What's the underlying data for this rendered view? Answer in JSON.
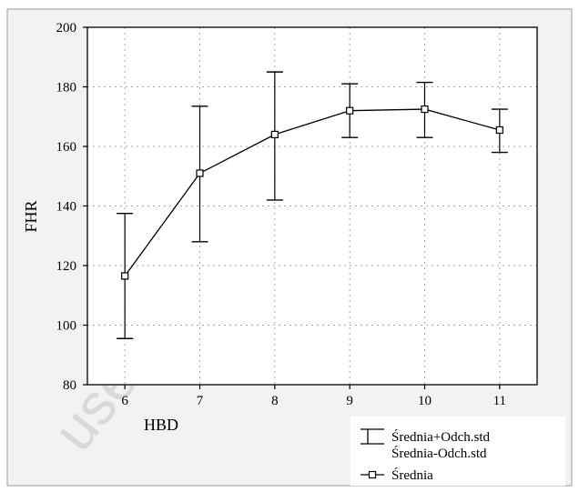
{
  "colors": {
    "background": "#ffffff",
    "panel": "#f2f2f2",
    "grid": "#a8a8a8",
    "line": "#000000",
    "watermark": "#d9d9d9"
  },
  "watermark": {
    "text": "use only - distribute"
  },
  "chart_data": {
    "type": "line",
    "title": "",
    "xlabel": "HBD",
    "ylabel": "FHR",
    "categories": [
      "6",
      "7",
      "8",
      "9",
      "10",
      "11"
    ],
    "x": [
      6,
      7,
      8,
      9,
      10,
      11
    ],
    "xlim": [
      5.5,
      11.5
    ],
    "ylim": [
      80,
      200
    ],
    "yticks": [
      80,
      100,
      120,
      140,
      160,
      180,
      200
    ],
    "grid": true,
    "legend_position": "bottom-right",
    "series": [
      {
        "name": "Średnia",
        "marker": "square",
        "values": [
          116.5,
          151,
          164,
          172,
          172.5,
          165.5
        ]
      }
    ],
    "error_bars": {
      "upper_name": "Średnia+Odch.std",
      "lower_name": "Średnia-Odch.std",
      "upper": [
        137.5,
        173.5,
        185,
        181,
        181.5,
        172.5
      ],
      "lower": [
        95.5,
        128,
        142,
        163,
        163,
        158
      ]
    }
  }
}
